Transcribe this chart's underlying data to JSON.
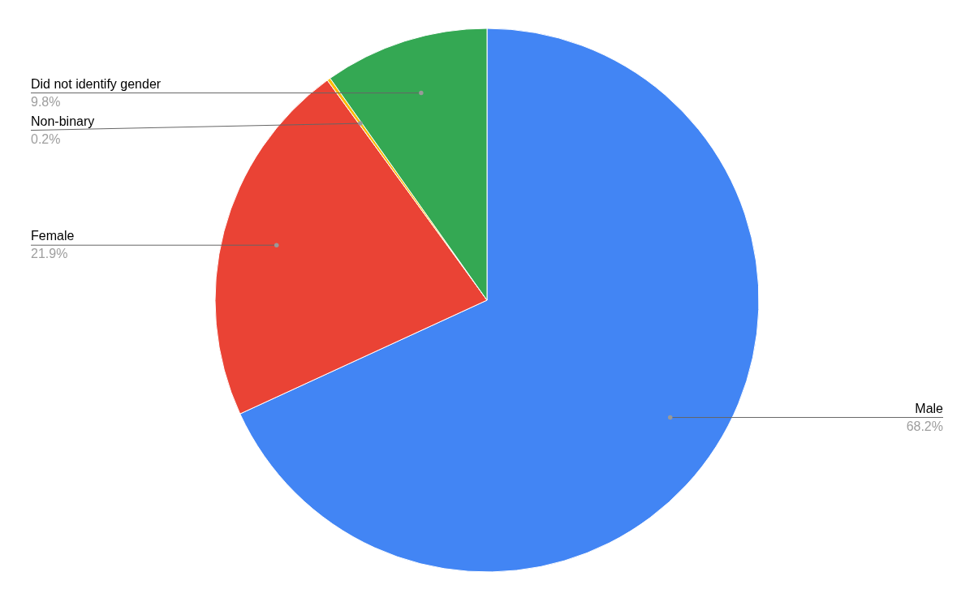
{
  "chart_data": {
    "type": "pie",
    "categories": [
      "Male",
      "Female",
      "Non-binary",
      "Did not identify gender"
    ],
    "values": [
      68.2,
      21.9,
      0.2,
      9.8
    ],
    "value_labels": [
      "68.2%",
      "21.9%",
      "0.2%",
      "9.8%"
    ],
    "colors": [
      "#4285f4",
      "#ea4335",
      "#fbbc04",
      "#34a853"
    ]
  }
}
